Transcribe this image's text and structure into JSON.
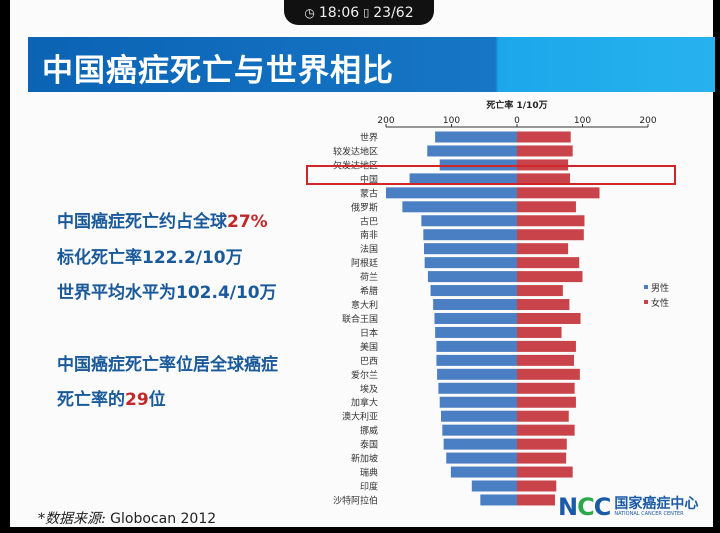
{
  "status_bar": {
    "time": "18:06",
    "page": "23/62",
    "clock_icon": "clock-icon",
    "page_icon": "page-icon"
  },
  "slide": {
    "title": "中国癌症死亡与世界相比",
    "bullets": [
      {
        "text": "中国癌症死亡约占全球",
        "highlight": "27%"
      },
      {
        "text": "标化死亡率122.2/10万",
        "highlight": ""
      },
      {
        "text": "世界平均水平为102.4/10万",
        "highlight": ""
      },
      {
        "text": "中国癌症死亡率位居全球癌症",
        "highlight": ""
      },
      {
        "text": "死亡率的",
        "highlight": "29",
        "suffix": "位"
      }
    ],
    "source_label": "*数据来源:",
    "source_value": "Globocan 2012",
    "logo": {
      "mark": "NCC",
      "name_cn": "国家癌症中心",
      "name_en": "NATIONAL CANCER CENTER"
    }
  },
  "chart_data": {
    "type": "bar",
    "orientation": "horizontal-diverging",
    "title": "死亡率 1/10万",
    "tick_labels": [
      "200",
      "100",
      "0",
      "100",
      "200"
    ],
    "xlim": [
      -200,
      200
    ],
    "highlight_category": "中国",
    "highlight_color": "#d0262a",
    "legend_position": "right",
    "categories": [
      "世界",
      "较发达地区",
      "欠发达地区",
      "中国",
      "蒙古",
      "俄罗斯",
      "古巴",
      "南非",
      "法国",
      "阿根廷",
      "荷兰",
      "希腊",
      "意大利",
      "联合王国",
      "日本",
      "美国",
      "巴西",
      "爱尔兰",
      "埃及",
      "加拿大",
      "澳大利亚",
      "挪威",
      "泰国",
      "新加坡",
      "瑞典",
      "印度",
      "沙特阿拉伯"
    ],
    "series": [
      {
        "name": "男性",
        "color": "#4a7fc4",
        "values": [
          125,
          137,
          118,
          164,
          200,
          175,
          146,
          143,
          142,
          141,
          136,
          132,
          128,
          126,
          125,
          123,
          123,
          122,
          120,
          118,
          116,
          114,
          112,
          108,
          101,
          69,
          56
        ]
      },
      {
        "name": "女性",
        "color": "#c9444a",
        "values": [
          82,
          85,
          78,
          81,
          126,
          90,
          103,
          102,
          78,
          95,
          100,
          70,
          80,
          97,
          68,
          90,
          87,
          96,
          88,
          90,
          79,
          88,
          76,
          75,
          85,
          60,
          58
        ]
      }
    ]
  }
}
